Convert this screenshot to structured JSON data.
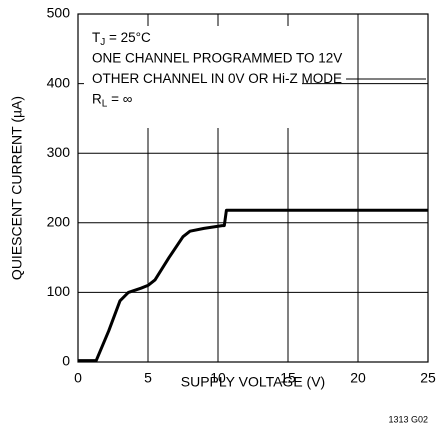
{
  "chart_data": {
    "type": "line",
    "x_label": "SUPPLY VOLTAGE (V)",
    "y_label": "QUIESCENT CURRENT (µA)",
    "annotations": [
      {
        "text": "T",
        "sub": "J",
        "rest": " = 25°C"
      },
      {
        "text": "ONE CHANNEL PROGRAMMED TO 12V"
      },
      {
        "text": "OTHER CHANNEL IN 0V OR Hi-Z MODE"
      },
      {
        "text": "R",
        "sub": "L",
        "rest": " = ∞"
      }
    ],
    "footnote": "1313 G02",
    "series": [
      {
        "name": "quiescent current",
        "color": "#000000",
        "x": [
          0,
          1.3,
          2.2,
          3,
          3.6,
          4.5,
          5,
          5.5,
          6.5,
          7.5,
          8,
          9,
          10.3,
          10.45,
          10.6,
          25
        ],
        "values": [
          2,
          2,
          45,
          88,
          100,
          106,
          110,
          118,
          150,
          180,
          188,
          192,
          196,
          196,
          218,
          218
        ]
      }
    ],
    "xlim": [
      0,
      25
    ],
    "xticks": [
      0,
      5,
      10,
      15,
      20,
      25
    ],
    "ylim": [
      0,
      500
    ],
    "yticks": [
      0,
      100,
      200,
      300,
      400,
      500
    ],
    "grid": true
  }
}
